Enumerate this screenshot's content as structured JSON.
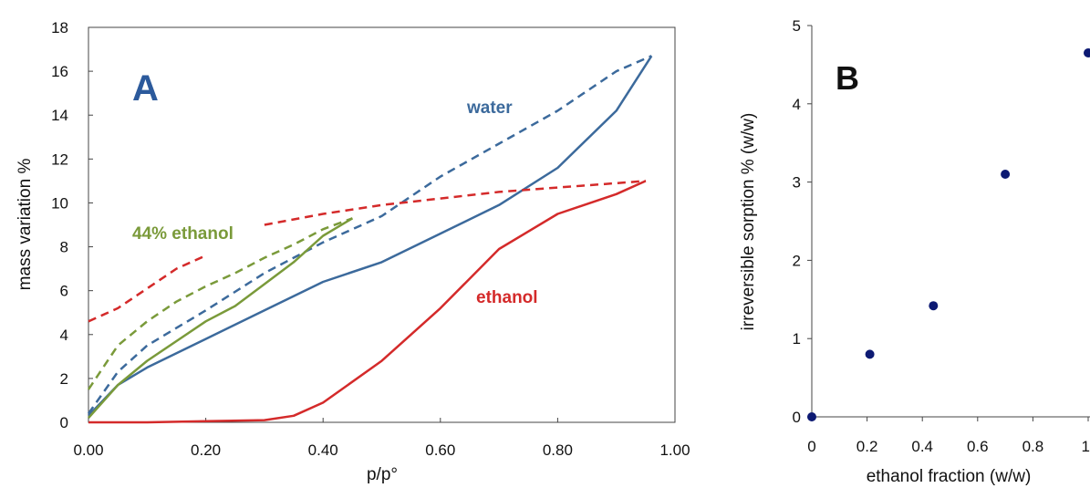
{
  "chart_data": [
    {
      "type": "line",
      "panel_label": "A",
      "xlabel": "p/p°",
      "ylabel": "mass variation %",
      "xlim": [
        0,
        1
      ],
      "ylim": [
        0,
        18
      ],
      "x_ticks": [
        "0.00",
        "0.20",
        "0.40",
        "0.60",
        "0.80",
        "1.00"
      ],
      "y_ticks": [
        "0",
        "2",
        "4",
        "6",
        "8",
        "10",
        "12",
        "14",
        "16",
        "18"
      ],
      "grid": false,
      "colors": {
        "water": "#3c6a9c",
        "ethanol": "#d42a2a",
        "mixture": "#7a9a3a"
      },
      "annotations": {
        "water": "water",
        "ethanol": "ethanol",
        "mixture": "44% ethanol"
      },
      "series": [
        {
          "key": "water",
          "branch": "sorption",
          "style": "solid",
          "x": [
            0.0,
            0.05,
            0.1,
            0.2,
            0.3,
            0.4,
            0.5,
            0.6,
            0.7,
            0.8,
            0.9,
            0.96
          ],
          "y": [
            0.3,
            1.7,
            2.5,
            3.8,
            5.1,
            6.4,
            7.3,
            8.6,
            9.9,
            11.6,
            14.2,
            16.7
          ]
        },
        {
          "key": "water",
          "branch": "desorption",
          "style": "dashed",
          "x": [
            0.0,
            0.05,
            0.1,
            0.2,
            0.3,
            0.4,
            0.5,
            0.6,
            0.7,
            0.8,
            0.9,
            0.96
          ],
          "y": [
            0.4,
            2.3,
            3.5,
            5.1,
            6.8,
            8.2,
            9.4,
            11.2,
            12.7,
            14.2,
            16.0,
            16.7
          ]
        },
        {
          "key": "ethanol",
          "branch": "sorption",
          "style": "solid",
          "x": [
            0.0,
            0.1,
            0.2,
            0.3,
            0.35,
            0.4,
            0.5,
            0.6,
            0.7,
            0.8,
            0.9,
            0.95
          ],
          "y": [
            0.0,
            0.0,
            0.05,
            0.1,
            0.3,
            0.9,
            2.8,
            5.2,
            7.9,
            9.5,
            10.4,
            11.0
          ]
        },
        {
          "key": "ethanol",
          "branch": "desorption",
          "style": "dashed",
          "x": [
            0.0,
            0.05,
            0.1,
            0.15,
            0.2
          ],
          "y": [
            4.6,
            5.2,
            6.1,
            7.0,
            7.6
          ]
        },
        {
          "key": "ethanol",
          "branch": "desorption",
          "style": "dashed",
          "x": [
            0.3,
            0.4,
            0.5,
            0.6,
            0.7,
            0.8,
            0.9,
            0.95
          ],
          "y": [
            9.0,
            9.5,
            9.9,
            10.2,
            10.5,
            10.7,
            10.9,
            11.0
          ]
        },
        {
          "key": "mixture",
          "branch": "sorption",
          "style": "solid",
          "x": [
            0.0,
            0.05,
            0.1,
            0.15,
            0.2,
            0.25,
            0.3,
            0.35,
            0.4,
            0.45
          ],
          "y": [
            0.2,
            1.7,
            2.8,
            3.7,
            4.6,
            5.3,
            6.3,
            7.3,
            8.5,
            9.3
          ]
        },
        {
          "key": "mixture",
          "branch": "desorption",
          "style": "dashed",
          "x": [
            0.0,
            0.05,
            0.1,
            0.15,
            0.2,
            0.25,
            0.3,
            0.35,
            0.4,
            0.45
          ],
          "y": [
            1.5,
            3.5,
            4.6,
            5.5,
            6.2,
            6.8,
            7.5,
            8.1,
            8.8,
            9.3
          ]
        }
      ]
    },
    {
      "type": "scatter",
      "panel_label": "B",
      "xlabel": "ethanol fraction (w/w)",
      "ylabel": "irreversible sorption % (w/w)",
      "xlim": [
        0,
        1
      ],
      "ylim": [
        0,
        5
      ],
      "x_ticks": [
        "0",
        "0.2",
        "0.4",
        "0.6",
        "0.8",
        "1"
      ],
      "y_ticks": [
        "0",
        "1",
        "2",
        "3",
        "4",
        "5"
      ],
      "grid": false,
      "marker_color": "#0d1a73",
      "series": [
        {
          "x": [
            0,
            0.21,
            0.44,
            0.7,
            1.0
          ],
          "y": [
            0.0,
            0.8,
            1.42,
            3.1,
            4.65
          ]
        }
      ]
    }
  ]
}
